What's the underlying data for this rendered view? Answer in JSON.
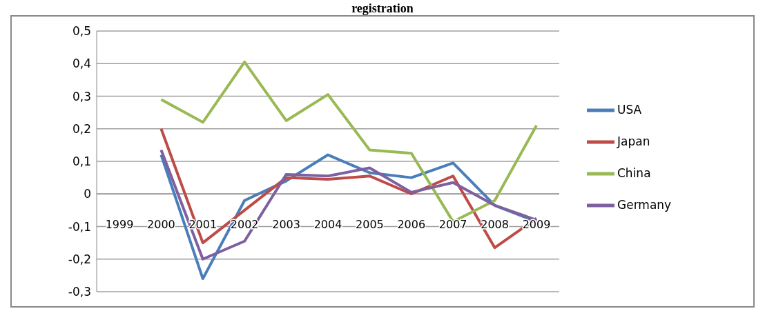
{
  "chart_data": {
    "type": "line",
    "title": "registration",
    "categories": [
      "1999",
      "2000",
      "2001",
      "2002",
      "2003",
      "2004",
      "2005",
      "2006",
      "2007",
      "2008",
      "2009"
    ],
    "series": [
      {
        "name": "USA",
        "color": "#4a7ebb",
        "values": [
          null,
          0.12,
          -0.26,
          -0.02,
          0.04,
          0.12,
          0.065,
          0.05,
          0.095,
          -0.035,
          -0.085
        ]
      },
      {
        "name": "Japan",
        "color": "#be4b48",
        "values": [
          null,
          0.2,
          -0.15,
          -0.05,
          0.05,
          0.045,
          0.055,
          0,
          0.055,
          -0.165,
          -0.075
        ]
      },
      {
        "name": "China",
        "color": "#98b954",
        "values": [
          null,
          0.29,
          0.22,
          0.405,
          0.225,
          0.305,
          0.135,
          0.125,
          -0.085,
          -0.02,
          0.21
        ]
      },
      {
        "name": "Germany",
        "color": "#7d60a0",
        "values": [
          null,
          0.135,
          -0.2,
          -0.145,
          0.06,
          0.055,
          0.08,
          0.005,
          0.035,
          -0.035,
          -0.08
        ]
      }
    ],
    "ylim": [
      -0.3,
      0.5
    ],
    "yticks": [
      {
        "value": -0.3,
        "label": "-0,3"
      },
      {
        "value": -0.2,
        "label": "-0,2"
      },
      {
        "value": -0.1,
        "label": "-0,1"
      },
      {
        "value": 0,
        "label": "0"
      },
      {
        "value": 0.1,
        "label": "0,1"
      },
      {
        "value": 0.2,
        "label": "0,2"
      },
      {
        "value": 0.3,
        "label": "0,3"
      },
      {
        "value": 0.4,
        "label": "0,4"
      },
      {
        "value": 0.5,
        "label": "0,5"
      }
    ],
    "grid": "y",
    "legend": "right",
    "marker": "none",
    "line_style": "solid"
  }
}
